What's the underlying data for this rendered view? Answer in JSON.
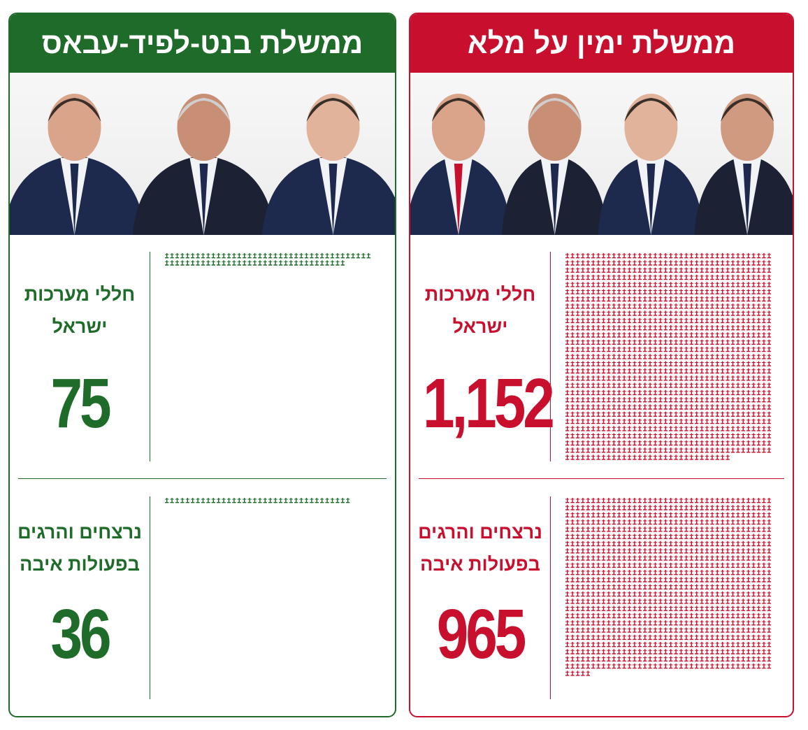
{
  "panels": [
    {
      "title": "ממשלת ימין על מלא",
      "color": "#c8102e",
      "people": 4,
      "metrics": [
        {
          "label": [
            "חללי מערכות",
            "ישראל"
          ],
          "value": 1152,
          "value_label": "1,152"
        },
        {
          "label": [
            "נרצחים והרגים",
            "בפעולות איבה"
          ],
          "value": 965,
          "value_label": "965"
        }
      ]
    },
    {
      "title": "ממשלת בנט-לפיד-עבאס",
      "color": "#1e6b2a",
      "people": 3,
      "metrics": [
        {
          "label": [
            "חללי מערכות",
            "ישראל"
          ],
          "value": 75,
          "value_label": "75"
        },
        {
          "label": [
            "נרצחים והרגים",
            "בפעולות איבה"
          ],
          "value": 36,
          "value_label": "36"
        }
      ]
    }
  ]
}
